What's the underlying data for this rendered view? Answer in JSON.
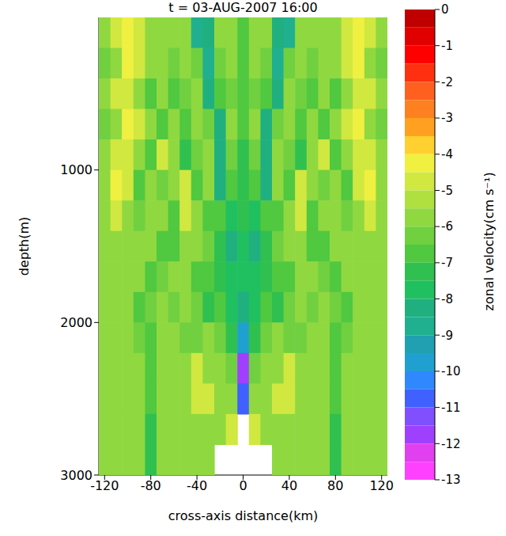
{
  "chart_data": {
    "type": "heatmap",
    "title": "t = 03-AUG-2007 16:00",
    "xlabel": "cross-axis distance(km)",
    "ylabel": "depth(m)",
    "xlim": [
      -125,
      125
    ],
    "xticks": [
      -120,
      -80,
      -40,
      0,
      40,
      80,
      120
    ],
    "ylim": [
      0,
      3000
    ],
    "yticks": [
      1000,
      2000,
      3000
    ],
    "log": false,
    "grid": false,
    "x": [
      -120,
      -110,
      -100,
      -90,
      -80,
      -70,
      -60,
      -50,
      -40,
      -30,
      -20,
      -10,
      0,
      10,
      20,
      30,
      40,
      50,
      60,
      70,
      80,
      90,
      100,
      110,
      120
    ],
    "y": [
      100,
      300,
      500,
      700,
      900,
      1100,
      1300,
      1500,
      1700,
      1900,
      2100,
      2300,
      2500,
      2700,
      2900
    ],
    "values": [
      [
        -6,
        -5,
        -4.5,
        -5,
        -5.5,
        -6,
        -5.5,
        -6,
        -9,
        -8.5,
        -6,
        -6,
        -7,
        -6,
        -6,
        -8.5,
        -9,
        -6,
        -5.5,
        -6,
        -5.5,
        -5,
        -4.5,
        -5,
        -6
      ],
      [
        -6.5,
        -5.5,
        -4.5,
        -5,
        -5.5,
        -6,
        -6.5,
        -6,
        -6.5,
        -9,
        -6.5,
        -6,
        -7,
        -6,
        -6.5,
        -9,
        -6.5,
        -6,
        -6.5,
        -6,
        -5.5,
        -5,
        -4.5,
        -5.5,
        -6.5
      ],
      [
        -6,
        -5,
        -5,
        -5.5,
        -7,
        -6,
        -7,
        -6.5,
        -6,
        -8.5,
        -7,
        -6.5,
        -7,
        -6.5,
        -7,
        -8.5,
        -6,
        -6.5,
        -7,
        -6,
        -7,
        -5.5,
        -5,
        -5,
        -6
      ],
      [
        -6.5,
        -5.5,
        -4.5,
        -5,
        -6,
        -7,
        -6,
        -7,
        -6,
        -6.5,
        -8.5,
        -6,
        -7,
        -6,
        -8.5,
        -6.5,
        -6,
        -7,
        -6,
        -7,
        -6,
        -5,
        -4.5,
        -5.5,
        -6.5
      ],
      [
        -6,
        -5,
        -5,
        -5.5,
        -7,
        -5,
        -6,
        -7.5,
        -6.5,
        -6,
        -8.5,
        -6.5,
        -7.5,
        -6.5,
        -8.5,
        -6,
        -6.5,
        -7.5,
        -6,
        -5,
        -7,
        -5.5,
        -5,
        -5,
        -6
      ],
      [
        -5.5,
        -4.5,
        -5,
        -7,
        -6,
        -6.5,
        -5.5,
        -5,
        -7,
        -6,
        -8.5,
        -7,
        -7.5,
        -7,
        -8.5,
        -6,
        -7,
        -5,
        -5.5,
        -6.5,
        -6,
        -7,
        -5,
        -4.5,
        -5.5
      ],
      [
        -6,
        -5,
        -5.5,
        -6.5,
        -5.5,
        -6,
        -7,
        -5,
        -5.5,
        -7,
        -7,
        -8,
        -7.5,
        -8,
        -7,
        -7,
        -5.5,
        -5,
        -7,
        -6,
        -5.5,
        -6.5,
        -5.5,
        -5,
        -6
      ],
      [
        -6,
        -5.5,
        -6,
        -5.5,
        -6,
        -7,
        -7,
        -6,
        -5.5,
        -6.5,
        -7.5,
        -8.5,
        -8,
        -8.5,
        -7.5,
        -6.5,
        -5.5,
        -6,
        -7,
        -7,
        -6,
        -5.5,
        -6,
        -5.5,
        -6
      ],
      [
        -6,
        -6,
        -5.5,
        -6,
        -7,
        -6.5,
        -5.5,
        -6,
        -7,
        -7,
        -7.5,
        -8,
        -8,
        -8,
        -7.5,
        -7,
        -7,
        -6,
        -5.5,
        -6.5,
        -7,
        -6,
        -5.5,
        -6,
        -6
      ],
      [
        -6,
        -5.5,
        -6,
        -7,
        -6.5,
        -6,
        -6.5,
        -6,
        -6.5,
        -7.5,
        -7,
        -8,
        -8.5,
        -8,
        -7,
        -7.5,
        -6.5,
        -6,
        -6.5,
        -6,
        -6.5,
        -7,
        -6,
        -5.5,
        -6
      ],
      [
        -5.5,
        -6,
        -6,
        -6.5,
        -7,
        -6,
        -6,
        -6.5,
        -6.5,
        -6,
        -6.5,
        -7.5,
        -10,
        -7.5,
        -6.5,
        -6,
        -6.5,
        -6.5,
        -6,
        -6,
        -7,
        -6.5,
        -6,
        -6,
        -5.5
      ],
      [
        -5.5,
        -5.5,
        -5.5,
        -6,
        -7,
        -6,
        -6,
        -5.5,
        -5,
        -5.5,
        -6,
        -6.5,
        -12,
        -6.5,
        -6,
        -5.5,
        -5,
        -5.5,
        -6,
        -6,
        -7,
        -6,
        -5.5,
        -5.5,
        -5.5
      ],
      [
        -5.5,
        -5.5,
        -5.5,
        -5.5,
        -7,
        -5.5,
        -5.5,
        -5.5,
        -5,
        -5,
        -5.5,
        -6,
        -11,
        -6,
        -5.5,
        -5,
        -5,
        -5.5,
        -5.5,
        -5.5,
        -7,
        -5.5,
        -5.5,
        -5.5,
        -5.5
      ],
      [
        -5.5,
        -5.5,
        -5.5,
        -5.5,
        -7.5,
        -6,
        -5.5,
        -5.5,
        -5.5,
        -5.5,
        -5.5,
        -5,
        null,
        -5,
        -5.5,
        -5.5,
        -5.5,
        -5.5,
        -5.5,
        -6,
        -7.5,
        -5.5,
        -5.5,
        -5.5,
        -5.5
      ],
      [
        -5.5,
        -5.5,
        -5.5,
        -5.5,
        -7.5,
        -6,
        -6,
        -6,
        -5.5,
        -5.5,
        null,
        null,
        null,
        null,
        null,
        -5.5,
        -5.5,
        -6,
        -6,
        -6,
        -7.5,
        -5.5,
        -5.5,
        -5.5,
        -5.5
      ]
    ],
    "colorbar": {
      "label": "zonal velocity(cm s⁻¹)",
      "range": [
        -13,
        0
      ],
      "ticks": [
        0,
        -1,
        -2,
        -3,
        -4,
        -5,
        -6,
        -7,
        -8,
        -9,
        -10,
        -11,
        -12,
        -13
      ],
      "colors": [
        "#ff40ff",
        "#e040f0",
        "#a040ff",
        "#8050ff",
        "#4060ff",
        "#3088ff",
        "#20a0d0",
        "#20a0b0",
        "#20b090",
        "#20b080",
        "#20c060",
        "#30c050",
        "#50c840",
        "#70d040",
        "#90d840",
        "#b0e040",
        "#d0e840",
        "#f0f040",
        "#ffd030",
        "#ffa020",
        "#ff8020",
        "#ff6020",
        "#ff3010",
        "#ff0000",
        "#e00000",
        "#c00000"
      ]
    }
  }
}
